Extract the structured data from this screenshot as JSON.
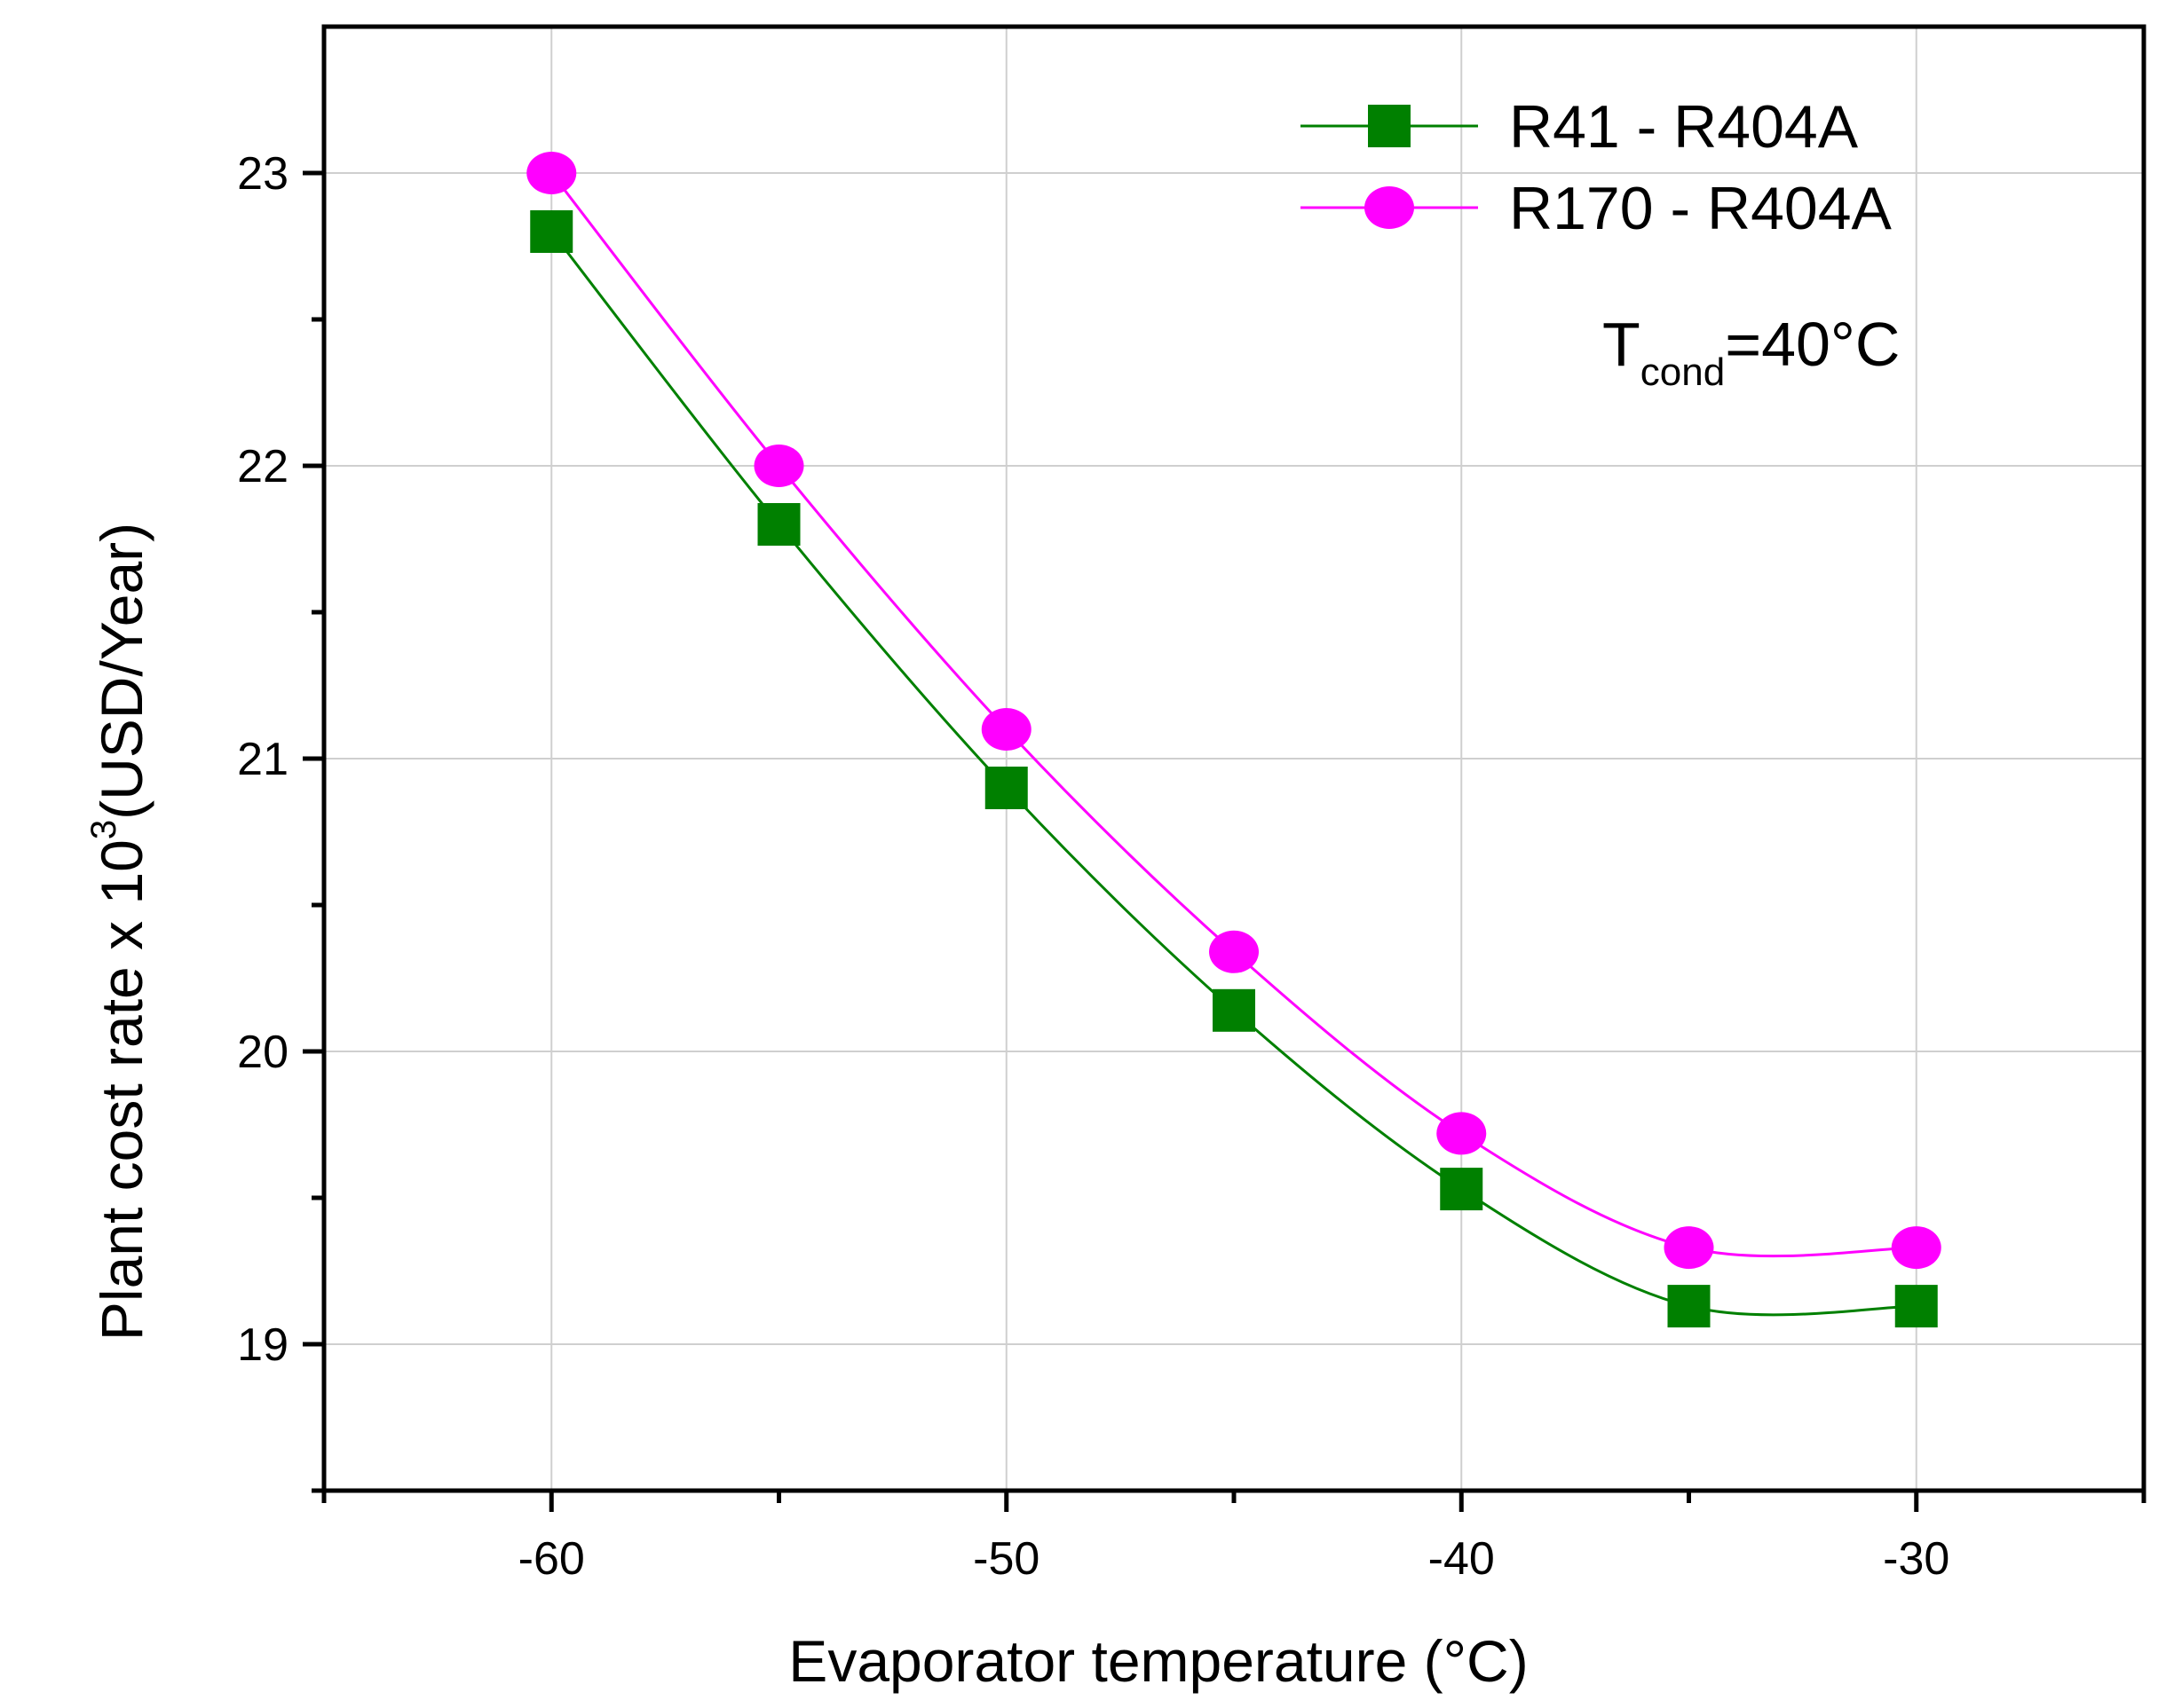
{
  "chart_data": {
    "type": "line",
    "title": "",
    "xlabel": "Evaporator temperature (°C)",
    "ylabel_main": "Plant cost rate x 10",
    "ylabel_sup": "3",
    "ylabel_unit": "(USD/Year)",
    "xlim": [
      -65,
      -25
    ],
    "ylim": [
      18.5,
      23.5
    ],
    "x_ticks": [
      -60,
      -50,
      -40,
      -30
    ],
    "x_tick_labels": [
      "-60",
      "-50",
      "-40",
      "-30"
    ],
    "x_minor_ticks": [
      -55,
      -45,
      -35
    ],
    "y_ticks": [
      19,
      20,
      21,
      22,
      23
    ],
    "y_tick_labels": [
      "19",
      "20",
      "21",
      "22",
      "23"
    ],
    "y_minor_ticks": [
      19.5,
      20.5,
      21.5,
      22.5
    ],
    "grid": true,
    "legend_position": "top-right",
    "x": [
      -60,
      -55,
      -50,
      -45,
      -40,
      -35,
      -30
    ],
    "series": [
      {
        "name": "R41 - R404A",
        "color": "#008000",
        "marker": "square",
        "values": [
          22.8,
          21.8,
          20.9,
          20.14,
          19.53,
          19.13,
          19.13
        ]
      },
      {
        "name": "R170 - R404A",
        "color": "#ff00ff",
        "marker": "circle",
        "values": [
          23.0,
          22.0,
          21.1,
          20.34,
          19.72,
          19.33,
          19.33
        ]
      }
    ],
    "annotation": {
      "main": "T",
      "sub": "cond",
      "value": "=40°C"
    }
  }
}
